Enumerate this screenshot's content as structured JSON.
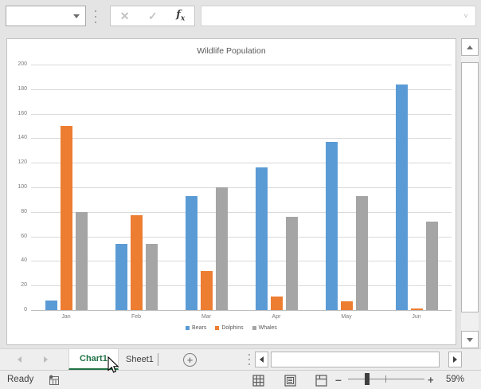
{
  "formula_bar": {
    "name_box_value": "",
    "formula_value": "",
    "icons": {
      "cancel": "✕",
      "enter": "✓",
      "chevron": "˅"
    }
  },
  "chart_data": {
    "type": "bar",
    "title": "Wildlife Population",
    "categories": [
      "Jan",
      "Feb",
      "Mar",
      "Apr",
      "May",
      "Jun"
    ],
    "series": [
      {
        "name": "Bears",
        "color": "#5B9BD5",
        "values": [
          8,
          54,
          93,
          116,
          137,
          184
        ]
      },
      {
        "name": "Dolphins",
        "color": "#ED7D31",
        "values": [
          150,
          77,
          32,
          11,
          7,
          1
        ]
      },
      {
        "name": "Whales",
        "color": "#A5A5A5",
        "values": [
          80,
          54,
          100,
          76,
          93,
          72
        ]
      }
    ],
    "ylim": [
      0,
      200
    ],
    "yticks": [
      0,
      20,
      40,
      60,
      80,
      100,
      120,
      140,
      160,
      180,
      200
    ],
    "grid": true,
    "legend_position": "bottom"
  },
  "sheet_tabs": {
    "tabs": [
      {
        "label": "Chart1",
        "active": true
      },
      {
        "label": "Sheet1",
        "active": false
      }
    ],
    "add_sheet_label": "+"
  },
  "status_bar": {
    "ready_label": "Ready",
    "zoom_minus": "–",
    "zoom_plus": "+",
    "zoom_level": "59%"
  },
  "colors": {
    "accent_green": "#217346",
    "gridline": "#d9d9d9",
    "chart_text": "#7a7a7a"
  }
}
